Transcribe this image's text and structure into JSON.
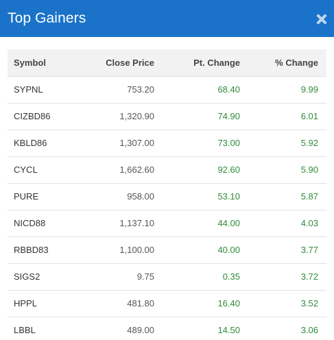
{
  "header": {
    "title": "Top Gainers",
    "close_icon": "close-icon"
  },
  "colors": {
    "header_bg": "#1a73c9",
    "positive": "#2e8b3a"
  },
  "table": {
    "columns": [
      "Symbol",
      "Close Price",
      "Pt. Change",
      "% Change"
    ],
    "rows": [
      [
        "SYPNL",
        "753.20",
        "68.40",
        "9.99"
      ],
      [
        "CIZBD86",
        "1,320.90",
        "74.90",
        "6.01"
      ],
      [
        "KBLD86",
        "1,307.00",
        "73.00",
        "5.92"
      ],
      [
        "CYCL",
        "1,662.60",
        "92.60",
        "5.90"
      ],
      [
        "PURE",
        "958.00",
        "53.10",
        "5.87"
      ],
      [
        "NICD88",
        "1,137.10",
        "44.00",
        "4.03"
      ],
      [
        "RBBD83",
        "1,100.00",
        "40.00",
        "3.77"
      ],
      [
        "SIGS2",
        "9.75",
        "0.35",
        "3.72"
      ],
      [
        "HPPL",
        "481.80",
        "16.40",
        "3.52"
      ],
      [
        "LBBL",
        "489.00",
        "14.50",
        "3.06"
      ]
    ]
  }
}
